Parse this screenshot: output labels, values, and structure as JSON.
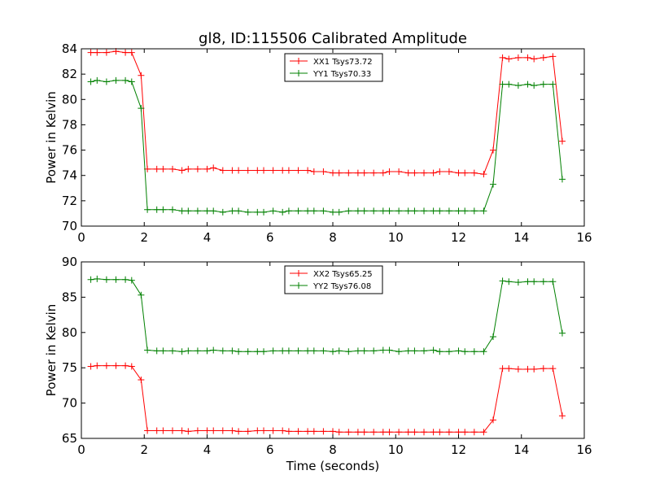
{
  "figure": {
    "title": "gl8, ID:115506 Calibrated Amplitude",
    "xlabel": "Time (seconds)"
  },
  "chart_data": [
    {
      "type": "line",
      "ylabel": "Power in Kelvin",
      "xlim": [
        0,
        16
      ],
      "ylim": [
        70,
        84
      ],
      "xticks": [
        0,
        2,
        4,
        6,
        8,
        10,
        12,
        14,
        16
      ],
      "yticks": [
        70,
        72,
        74,
        76,
        78,
        80,
        82,
        84
      ],
      "legend_position": "top-center",
      "x": [
        0.3,
        0.5,
        0.8,
        1.1,
        1.4,
        1.6,
        1.9,
        2.1,
        2.4,
        2.6,
        2.9,
        3.2,
        3.4,
        3.7,
        4.0,
        4.2,
        4.5,
        4.8,
        5.0,
        5.3,
        5.6,
        5.8,
        6.1,
        6.4,
        6.6,
        6.9,
        7.2,
        7.4,
        7.7,
        8.0,
        8.2,
        8.5,
        8.8,
        9.0,
        9.3,
        9.6,
        9.8,
        10.1,
        10.4,
        10.6,
        10.9,
        11.2,
        11.4,
        11.7,
        12.0,
        12.2,
        12.5,
        12.8,
        13.1,
        13.4,
        13.6,
        13.9,
        14.2,
        14.4,
        14.7,
        15.0,
        15.3
      ],
      "series": [
        {
          "name": "XX1 Tsys73.72",
          "color": "#ff0000",
          "values": [
            83.7,
            83.7,
            83.7,
            83.8,
            83.7,
            83.7,
            81.9,
            74.5,
            74.5,
            74.5,
            74.5,
            74.4,
            74.5,
            74.5,
            74.5,
            74.6,
            74.4,
            74.4,
            74.4,
            74.4,
            74.4,
            74.4,
            74.4,
            74.4,
            74.4,
            74.4,
            74.4,
            74.3,
            74.3,
            74.2,
            74.2,
            74.2,
            74.2,
            74.2,
            74.2,
            74.2,
            74.3,
            74.3,
            74.2,
            74.2,
            74.2,
            74.2,
            74.3,
            74.3,
            74.2,
            74.2,
            74.2,
            74.1,
            76.0,
            83.3,
            83.2,
            83.3,
            83.3,
            83.2,
            83.3,
            83.4,
            76.7
          ]
        },
        {
          "name": "YY1 Tsys70.33",
          "color": "#008000",
          "values": [
            81.4,
            81.5,
            81.4,
            81.5,
            81.5,
            81.4,
            79.3,
            71.3,
            71.3,
            71.3,
            71.3,
            71.2,
            71.2,
            71.2,
            71.2,
            71.2,
            71.1,
            71.2,
            71.2,
            71.1,
            71.1,
            71.1,
            71.2,
            71.1,
            71.2,
            71.2,
            71.2,
            71.2,
            71.2,
            71.1,
            71.1,
            71.2,
            71.2,
            71.2,
            71.2,
            71.2,
            71.2,
            71.2,
            71.2,
            71.2,
            71.2,
            71.2,
            71.2,
            71.2,
            71.2,
            71.2,
            71.2,
            71.2,
            73.3,
            81.2,
            81.2,
            81.1,
            81.2,
            81.1,
            81.2,
            81.2,
            73.7
          ]
        }
      ]
    },
    {
      "type": "line",
      "ylabel": "Power in Kelvin",
      "xlim": [
        0,
        16
      ],
      "ylim": [
        65,
        90
      ],
      "xticks": [
        0,
        2,
        4,
        6,
        8,
        10,
        12,
        14,
        16
      ],
      "yticks": [
        65,
        70,
        75,
        80,
        85,
        90
      ],
      "legend_position": "top-center",
      "x": [
        0.3,
        0.5,
        0.8,
        1.1,
        1.4,
        1.6,
        1.9,
        2.1,
        2.4,
        2.6,
        2.9,
        3.2,
        3.4,
        3.7,
        4.0,
        4.2,
        4.5,
        4.8,
        5.0,
        5.3,
        5.6,
        5.8,
        6.1,
        6.4,
        6.6,
        6.9,
        7.2,
        7.4,
        7.7,
        8.0,
        8.2,
        8.5,
        8.8,
        9.0,
        9.3,
        9.6,
        9.8,
        10.1,
        10.4,
        10.6,
        10.9,
        11.2,
        11.4,
        11.7,
        12.0,
        12.2,
        12.5,
        12.8,
        13.1,
        13.4,
        13.6,
        13.9,
        14.2,
        14.4,
        14.7,
        15.0,
        15.3
      ],
      "series": [
        {
          "name": "XX2 Tsys65.25",
          "color": "#ff0000",
          "values": [
            75.2,
            75.3,
            75.3,
            75.3,
            75.3,
            75.2,
            73.3,
            66.1,
            66.1,
            66.1,
            66.1,
            66.1,
            66.0,
            66.1,
            66.1,
            66.1,
            66.1,
            66.1,
            66.0,
            66.0,
            66.1,
            66.1,
            66.1,
            66.1,
            66.0,
            66.0,
            66.0,
            66.0,
            66.0,
            66.0,
            65.9,
            65.9,
            65.9,
            65.9,
            65.9,
            65.9,
            65.9,
            65.9,
            65.9,
            65.9,
            65.9,
            65.9,
            65.9,
            65.9,
            65.9,
            65.9,
            65.9,
            65.9,
            67.6,
            74.9,
            74.9,
            74.8,
            74.8,
            74.8,
            74.9,
            74.9,
            68.2
          ]
        },
        {
          "name": "YY2 Tsys76.08",
          "color": "#008000",
          "values": [
            87.5,
            87.6,
            87.5,
            87.5,
            87.5,
            87.4,
            85.3,
            77.5,
            77.4,
            77.4,
            77.4,
            77.3,
            77.4,
            77.4,
            77.4,
            77.5,
            77.4,
            77.4,
            77.3,
            77.3,
            77.3,
            77.3,
            77.4,
            77.4,
            77.4,
            77.4,
            77.4,
            77.4,
            77.4,
            77.3,
            77.4,
            77.3,
            77.4,
            77.4,
            77.4,
            77.5,
            77.5,
            77.3,
            77.4,
            77.4,
            77.4,
            77.5,
            77.3,
            77.3,
            77.4,
            77.3,
            77.3,
            77.3,
            79.4,
            87.3,
            87.2,
            87.1,
            87.2,
            87.2,
            87.2,
            87.2,
            79.9
          ]
        }
      ]
    }
  ]
}
